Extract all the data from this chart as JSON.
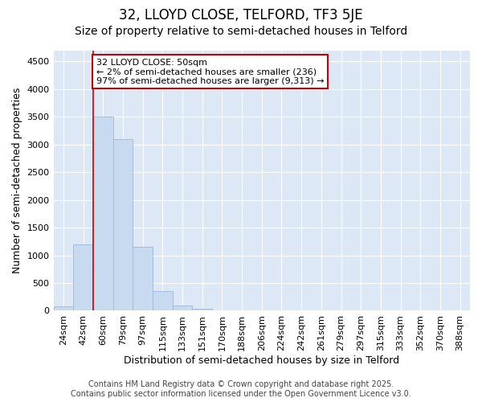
{
  "title": "32, LLOYD CLOSE, TELFORD, TF3 5JE",
  "subtitle": "Size of property relative to semi-detached houses in Telford",
  "xlabel": "Distribution of semi-detached houses by size in Telford",
  "ylabel": "Number of semi-detached properties",
  "categories": [
    "24sqm",
    "42sqm",
    "60sqm",
    "79sqm",
    "97sqm",
    "115sqm",
    "133sqm",
    "151sqm",
    "170sqm",
    "188sqm",
    "206sqm",
    "224sqm",
    "242sqm",
    "261sqm",
    "279sqm",
    "297sqm",
    "315sqm",
    "333sqm",
    "352sqm",
    "370sqm",
    "388sqm"
  ],
  "values": [
    75,
    1200,
    3500,
    3100,
    1150,
    350,
    100,
    30,
    5,
    2,
    1,
    1,
    0,
    0,
    0,
    0,
    0,
    0,
    0,
    0,
    0
  ],
  "bar_color": "#c8daf0",
  "bar_edgecolor": "#9db8d8",
  "property_label": "32 LLOYD CLOSE: 50sqm",
  "annotation_line1": "← 2% of semi-detached houses are smaller (236)",
  "annotation_line2": "97% of semi-detached houses are larger (9,313) →",
  "annotation_box_color": "#ffffff",
  "annotation_box_edgecolor": "#cc0000",
  "vline_color": "#cc0000",
  "vline_x_index": 1.5,
  "ylim": [
    0,
    4700
  ],
  "yticks": [
    0,
    500,
    1000,
    1500,
    2000,
    2500,
    3000,
    3500,
    4000,
    4500
  ],
  "background_color": "#dce8f5",
  "grid_color": "#ffffff",
  "footer1": "Contains HM Land Registry data © Crown copyright and database right 2025.",
  "footer2": "Contains public sector information licensed under the Open Government Licence v3.0.",
  "title_fontsize": 12,
  "subtitle_fontsize": 10,
  "axis_label_fontsize": 9,
  "tick_fontsize": 8,
  "annotation_fontsize": 8,
  "footer_fontsize": 7
}
